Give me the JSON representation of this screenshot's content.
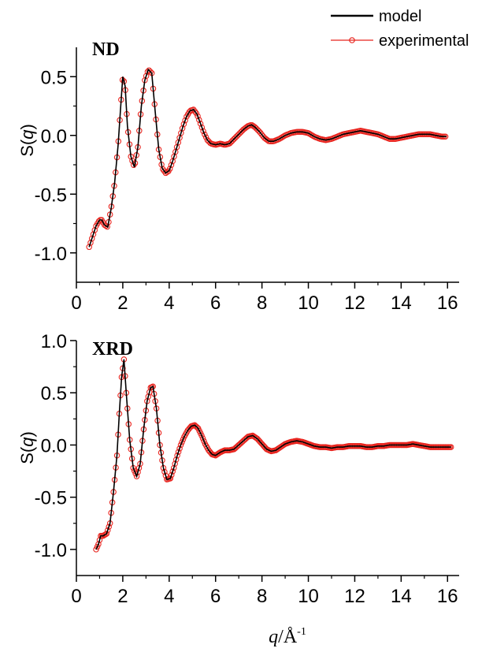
{
  "legend": {
    "model_label": "model",
    "experimental_label": "experimental",
    "model_color": "#000000",
    "experimental_color": "#e8251f"
  },
  "xlabel": {
    "var": "q",
    "unit": "/Å",
    "sup": "-1"
  },
  "ylabel": {
    "prefix": "S(",
    "var": "q",
    "suffix": ")"
  },
  "chart_data": [
    {
      "type": "line",
      "title": "ND",
      "xlim": [
        0,
        16.5
      ],
      "ylim": [
        -1.25,
        0.75
      ],
      "xticks": [
        0,
        2,
        4,
        6,
        8,
        10,
        12,
        14,
        16
      ],
      "yticks": [
        -1.0,
        -0.5,
        0.0,
        0.5
      ],
      "ytick_labels": [
        "-1.0",
        "-0.5",
        "0.0",
        "0.5"
      ],
      "series": [
        {
          "name": "model"
        },
        {
          "name": "experimental"
        }
      ],
      "x": [
        0.55,
        0.7,
        0.85,
        1.0,
        1.1,
        1.2,
        1.35,
        1.5,
        1.65,
        1.8,
        1.9,
        2.0,
        2.1,
        2.2,
        2.35,
        2.5,
        2.65,
        2.8,
        2.95,
        3.1,
        3.25,
        3.4,
        3.55,
        3.7,
        3.85,
        4.0,
        4.15,
        4.3,
        4.45,
        4.6,
        4.75,
        4.9,
        5.05,
        5.2,
        5.35,
        5.5,
        5.65,
        5.8,
        6.0,
        6.2,
        6.4,
        6.6,
        6.8,
        7.0,
        7.2,
        7.4,
        7.55,
        7.7,
        7.9,
        8.1,
        8.3,
        8.5,
        8.75,
        9.0,
        9.25,
        9.5,
        9.75,
        10.0,
        10.25,
        10.5,
        10.75,
        11.0,
        11.25,
        11.5,
        11.75,
        12.0,
        12.25,
        12.5,
        12.75,
        13.0,
        13.25,
        13.5,
        13.75,
        14.0,
        14.25,
        14.5,
        14.75,
        15.0,
        15.25,
        15.5,
        15.75,
        15.95
      ],
      "y": [
        -0.95,
        -0.86,
        -0.77,
        -0.72,
        -0.72,
        -0.76,
        -0.78,
        -0.62,
        -0.4,
        -0.08,
        0.22,
        0.5,
        0.42,
        0.08,
        -0.18,
        -0.27,
        -0.1,
        0.25,
        0.47,
        0.56,
        0.53,
        0.2,
        -0.12,
        -0.28,
        -0.32,
        -0.3,
        -0.22,
        -0.12,
        -0.02,
        0.08,
        0.16,
        0.21,
        0.22,
        0.18,
        0.1,
        0.02,
        -0.04,
        -0.07,
        -0.08,
        -0.07,
        -0.08,
        -0.07,
        -0.03,
        0.01,
        0.05,
        0.08,
        0.09,
        0.07,
        0.03,
        -0.02,
        -0.05,
        -0.05,
        -0.03,
        0.0,
        0.02,
        0.03,
        0.03,
        0.02,
        -0.01,
        -0.03,
        -0.04,
        -0.03,
        -0.01,
        0.01,
        0.02,
        0.03,
        0.04,
        0.03,
        0.02,
        0.01,
        -0.01,
        -0.03,
        -0.03,
        -0.02,
        -0.01,
        0.0,
        0.01,
        0.01,
        0.01,
        0.0,
        -0.01,
        -0.01
      ]
    },
    {
      "type": "line",
      "title": "XRD",
      "xlim": [
        0,
        16.5
      ],
      "ylim": [
        -1.25,
        1.0
      ],
      "xticks": [
        0,
        2,
        4,
        6,
        8,
        10,
        12,
        14,
        16
      ],
      "yticks": [
        -1.0,
        -0.5,
        0.0,
        0.5,
        1.0
      ],
      "ytick_labels": [
        "-1.0",
        "-0.5",
        "0.0",
        "0.5",
        "1.0"
      ],
      "series": [
        {
          "name": "model"
        },
        {
          "name": "experimental"
        }
      ],
      "x": [
        0.85,
        0.95,
        1.05,
        1.15,
        1.3,
        1.45,
        1.6,
        1.75,
        1.85,
        1.95,
        2.05,
        2.15,
        2.3,
        2.45,
        2.6,
        2.75,
        2.9,
        3.05,
        3.2,
        3.3,
        3.45,
        3.6,
        3.75,
        3.9,
        4.05,
        4.2,
        4.35,
        4.5,
        4.65,
        4.8,
        4.95,
        5.1,
        5.25,
        5.4,
        5.55,
        5.7,
        5.85,
        6.0,
        6.2,
        6.4,
        6.6,
        6.8,
        7.0,
        7.2,
        7.4,
        7.6,
        7.8,
        8.0,
        8.2,
        8.4,
        8.6,
        8.8,
        9.0,
        9.25,
        9.5,
        9.75,
        10.0,
        10.25,
        10.5,
        10.75,
        11.0,
        11.25,
        11.5,
        11.75,
        12.0,
        12.25,
        12.5,
        12.75,
        13.0,
        13.25,
        13.5,
        13.75,
        14.0,
        14.25,
        14.5,
        14.75,
        15.0,
        15.25,
        15.5,
        15.75,
        16.0,
        16.15
      ],
      "y": [
        -1.0,
        -0.95,
        -0.87,
        -0.87,
        -0.85,
        -0.75,
        -0.45,
        -0.1,
        0.3,
        0.65,
        0.82,
        0.5,
        0.05,
        -0.22,
        -0.3,
        -0.18,
        0.15,
        0.42,
        0.55,
        0.56,
        0.35,
        0.0,
        -0.22,
        -0.33,
        -0.32,
        -0.22,
        -0.1,
        0.0,
        0.08,
        0.14,
        0.18,
        0.19,
        0.16,
        0.09,
        0.01,
        -0.05,
        -0.09,
        -0.1,
        -0.07,
        -0.05,
        -0.05,
        -0.04,
        0.0,
        0.04,
        0.08,
        0.09,
        0.06,
        0.01,
        -0.04,
        -0.06,
        -0.05,
        -0.02,
        0.01,
        0.03,
        0.04,
        0.03,
        0.01,
        -0.01,
        -0.02,
        -0.02,
        -0.03,
        -0.02,
        -0.02,
        -0.01,
        -0.01,
        -0.01,
        -0.02,
        -0.02,
        -0.01,
        -0.01,
        0.0,
        0.0,
        0.0,
        0.0,
        0.01,
        0.0,
        -0.01,
        -0.02,
        -0.02,
        -0.02,
        -0.02,
        -0.02
      ]
    }
  ]
}
